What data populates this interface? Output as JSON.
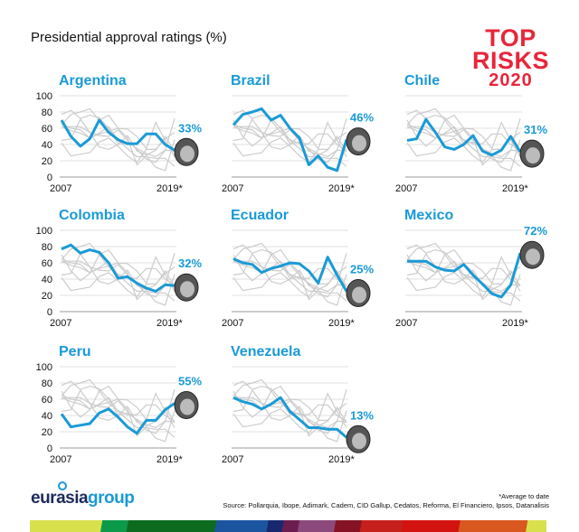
{
  "title": "Presidential approval ratings (%)",
  "logo": {
    "line1": "TOP",
    "line2": "RISKS",
    "line3": "2020",
    "color": "#e8263a"
  },
  "footer": {
    "brand_part1": "eurasia",
    "brand_part2": "group",
    "note": "*Average to date",
    "source": "Source: Pollarquia, Ibope, Adimark, Cadem, CID Gallup, Cedatos, Reforma, El Financiero, Ipsos, Datanalisis"
  },
  "colors": {
    "highlight": "#1a9ad6",
    "others": "#cccccc",
    "grid": "#e2e2e2"
  },
  "chart_data": {
    "type": "line",
    "layout": "small-multiples",
    "title": "Presidential approval ratings (%)",
    "x": [
      2007,
      2008,
      2009,
      2010,
      2011,
      2012,
      2013,
      2014,
      2015,
      2016,
      2017,
      2018,
      2019
    ],
    "x_tick_labels": [
      "2007",
      "2019*"
    ],
    "y_ticks": [
      "0",
      "20",
      "40",
      "60",
      "80",
      "100"
    ],
    "ylim": [
      0,
      100
    ],
    "grid": true,
    "series": [
      {
        "name": "Argentina",
        "current_label": "33%",
        "values": [
          70,
          50,
          38,
          47,
          70,
          55,
          46,
          41,
          41,
          53,
          53,
          40,
          33
        ]
      },
      {
        "name": "Brazil",
        "current_label": "46%",
        "values": [
          64,
          77,
          80,
          84,
          70,
          76,
          60,
          48,
          15,
          26,
          12,
          8,
          46
        ]
      },
      {
        "name": "Chile",
        "current_label": "31%",
        "values": [
          45,
          47,
          71,
          55,
          37,
          34,
          40,
          51,
          32,
          27,
          33,
          50,
          31
        ]
      },
      {
        "name": "Colombia",
        "current_label": "32%",
        "values": [
          77,
          82,
          72,
          76,
          73,
          60,
          41,
          43,
          35,
          29,
          25,
          33,
          32
        ]
      },
      {
        "name": "Ecuador",
        "current_label": "25%",
        "values": [
          65,
          60,
          58,
          48,
          53,
          56,
          60,
          59,
          50,
          35,
          67,
          45,
          25
        ]
      },
      {
        "name": "Mexico",
        "current_label": "72%",
        "values": [
          62,
          62,
          62,
          55,
          51,
          50,
          58,
          45,
          34,
          22,
          18,
          33,
          72
        ]
      },
      {
        "name": "Peru",
        "current_label": "55%",
        "values": [
          42,
          26,
          28,
          30,
          43,
          48,
          38,
          26,
          18,
          34,
          34,
          47,
          55
        ]
      },
      {
        "name": "Venezuela",
        "current_label": "13%",
        "values": [
          62,
          57,
          54,
          48,
          54,
          62,
          45,
          35,
          25,
          25,
          23,
          23,
          13
        ]
      }
    ]
  }
}
